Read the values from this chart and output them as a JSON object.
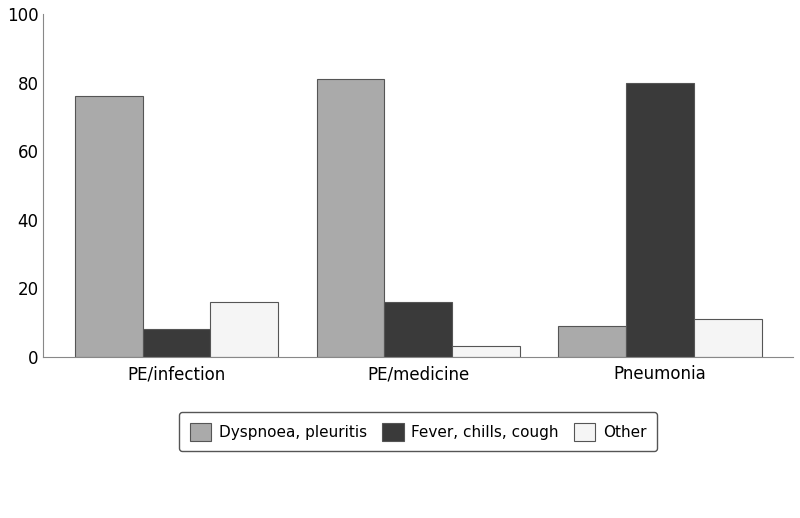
{
  "categories": [
    "PE/infection",
    "PE/medicine",
    "Pneumonia"
  ],
  "series": [
    {
      "label": "Dyspnoea, pleuritis",
      "values": [
        76,
        81,
        9
      ],
      "color": "#aaaaaa"
    },
    {
      "label": "Fever, chills, cough",
      "values": [
        8,
        16,
        80
      ],
      "color": "#3a3a3a"
    },
    {
      "label": "Other",
      "values": [
        16,
        3,
        11
      ],
      "color": "#f5f5f5"
    }
  ],
  "ylim": [
    0,
    100
  ],
  "yticks": [
    0,
    20,
    40,
    60,
    80,
    100
  ],
  "bar_width": 0.28,
  "background_color": "#ffffff",
  "spine_color": "#888888",
  "fontsize_ticks": 12,
  "fontsize_legend": 11,
  "fontsize_xlabel": 12
}
